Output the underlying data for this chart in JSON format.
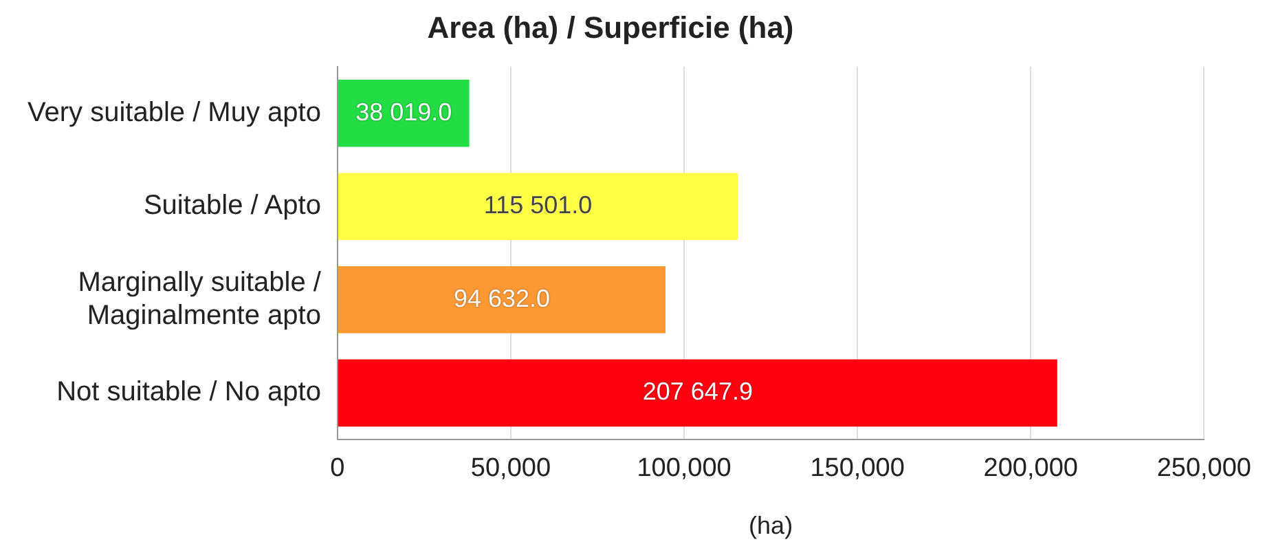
{
  "chart_data": {
    "type": "bar",
    "orientation": "horizontal",
    "title": "Area (ha) / Superficie (ha)",
    "xlabel": "(ha)",
    "categories": [
      "Very suitable / Muy apto",
      "Suitable / Apto",
      "Marginally suitable / Maginalmente apto",
      "Not suitable / No apto"
    ],
    "values": [
      38019.0,
      115501.0,
      94632.0,
      207647.9
    ],
    "colors": [
      "#22dd44",
      "#ffff44",
      "#ff9933",
      "#ff0011"
    ],
    "value_labels": [
      "38 019.0",
      "115 501.0",
      "94 632.0",
      "207 647.9"
    ],
    "xlim": [
      0,
      250000
    ],
    "xticks": [
      0,
      {
        "value": 50000,
        "label": "50,000"
      },
      {
        "value": 100000,
        "label": "100,000"
      },
      {
        "value": 150000,
        "label": "150,000"
      },
      {
        "value": 200000,
        "label": "200,000"
      },
      {
        "value": 250000,
        "label": "250,000"
      }
    ],
    "grid": "x",
    "legend": false
  }
}
